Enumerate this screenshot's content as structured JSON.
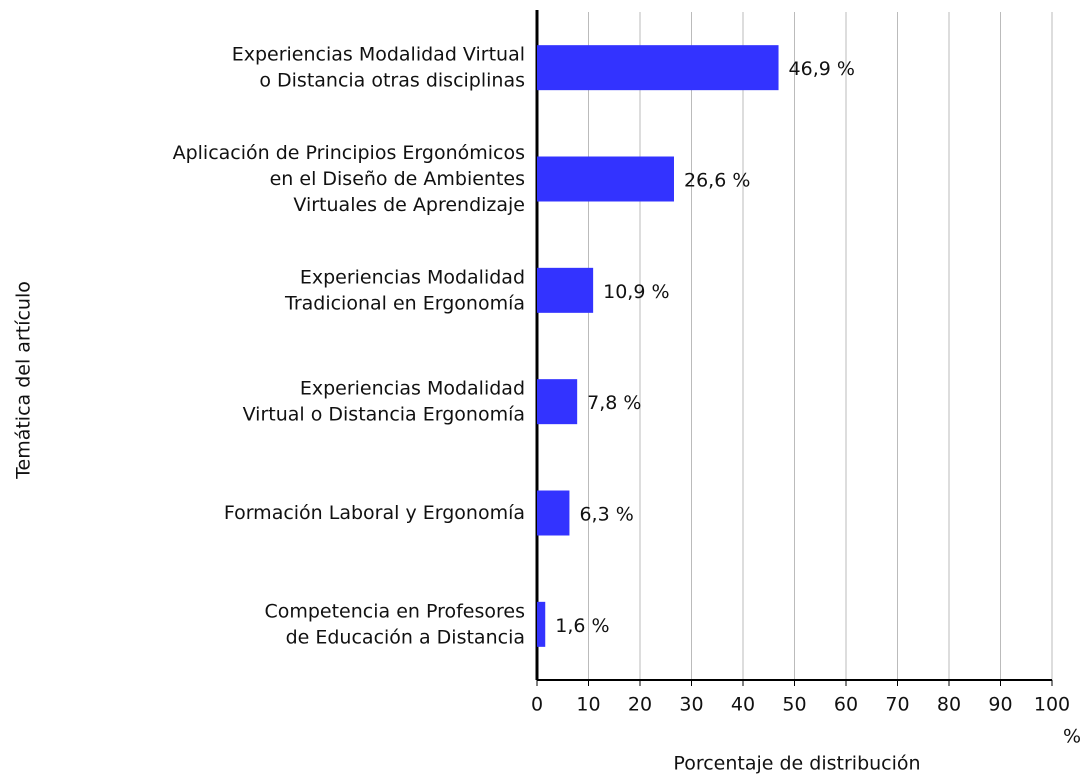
{
  "chart_data": {
    "type": "bar",
    "orientation": "horizontal",
    "x_label": "Porcentaje de distribución",
    "y_label": "Temática del artículo",
    "x_unit": "%",
    "categories": [
      "Experiencias Modalidad Virtual\no Distancia otras disciplinas",
      "Aplicación de Principios Ergonómicos\nen el Diseño de Ambientes\nVirtuales de Aprendizaje",
      "Experiencias Modalidad\nTradicional en Ergonomía",
      "Experiencias Modalidad\nVirtual o Distancia Ergonomía",
      "Formación Laboral y Ergonomía",
      "Competencia en Profesores\nde Educación a Distancia"
    ],
    "values": [
      46.9,
      26.6,
      10.9,
      7.8,
      6.3,
      1.6
    ],
    "value_labels": [
      "46,9 %",
      "26,6 %",
      "10,9 %",
      "7,8 %",
      "6,3 %",
      "1,6 %"
    ],
    "color": "#3333ff",
    "xlim": [
      0,
      100
    ],
    "xticks": [
      0,
      10,
      20,
      30,
      40,
      50,
      60,
      70,
      80,
      90,
      100
    ],
    "grid": true
  }
}
